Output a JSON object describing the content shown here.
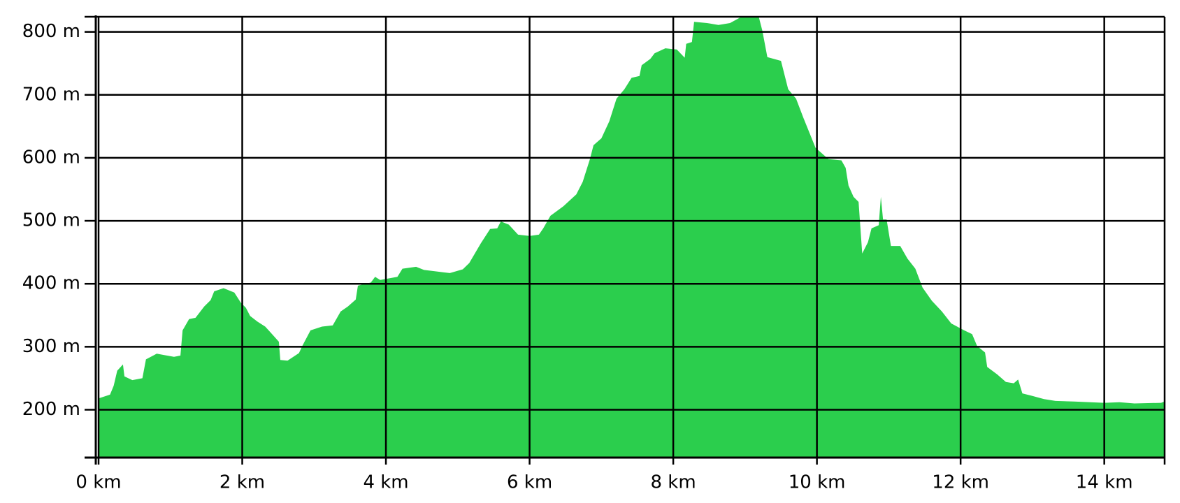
{
  "chart_data": {
    "type": "area",
    "x": [
      0,
      0.16,
      0.21,
      0.26,
      0.34,
      0.36,
      0.47,
      0.61,
      0.66,
      0.81,
      1.05,
      1.14,
      1.17,
      1.26,
      1.35,
      1.47,
      1.56,
      1.61,
      1.74,
      1.89,
      1.98,
      2.05,
      2.11,
      2.21,
      2.32,
      2.4,
      2.51,
      2.53,
      2.63,
      2.79,
      2.84,
      2.95,
      3.11,
      3.26,
      3.37,
      3.47,
      3.58,
      3.61,
      3.79,
      3.85,
      3.92,
      4.16,
      4.23,
      4.42,
      4.53,
      4.68,
      4.89,
      5.07,
      5.16,
      5.32,
      5.45,
      5.55,
      5.6,
      5.71,
      5.84,
      6.0,
      6.13,
      6.19,
      6.29,
      6.47,
      6.65,
      6.74,
      6.84,
      6.89,
      7.0,
      7.11,
      7.21,
      7.32,
      7.42,
      7.53,
      7.56,
      7.68,
      7.74,
      7.89,
      8.05,
      8.16,
      8.18,
      8.26,
      8.29,
      8.47,
      8.63,
      8.79,
      8.95,
      9.19,
      9.24,
      9.31,
      9.5,
      9.6,
      9.71,
      9.81,
      9.98,
      10.16,
      10.34,
      10.4,
      10.44,
      10.51,
      10.58,
      10.63,
      10.71,
      10.76,
      10.86,
      10.89,
      10.92,
      10.97,
      11.03,
      11.16,
      11.26,
      11.37,
      11.47,
      11.6,
      11.74,
      11.87,
      12.05,
      12.16,
      12.23,
      12.34,
      12.37,
      12.51,
      12.63,
      12.74,
      12.8,
      12.86,
      13.0,
      13.16,
      13.32,
      13.58,
      14.0,
      14.21,
      14.42,
      14.79,
      14.84
    ],
    "series": [
      {
        "color": "#2bce4d",
        "values": [
          218,
          224,
          238,
          262,
          272,
          253,
          247,
          250,
          280,
          289,
          284,
          286,
          326,
          344,
          346,
          364,
          374,
          388,
          393,
          386,
          370,
          362,
          349,
          340,
          332,
          322,
          308,
          279,
          278,
          290,
          302,
          326,
          332,
          334,
          356,
          364,
          375,
          397,
          402,
          411,
          406,
          411,
          424,
          427,
          422,
          420,
          417,
          423,
          433,
          464,
          487,
          488,
          499,
          494,
          478,
          476,
          478,
          488,
          508,
          523,
          542,
          562,
          598,
          620,
          631,
          658,
          694,
          709,
          727,
          730,
          747,
          757,
          766,
          774,
          772,
          759,
          781,
          784,
          816,
          814,
          811,
          814,
          824,
          824,
          802,
          760,
          754,
          709,
          694,
          664,
          616,
          598,
          596,
          584,
          556,
          538,
          530,
          448,
          466,
          488,
          493,
          538,
          502,
          502,
          460,
          460,
          440,
          424,
          394,
          373,
          356,
          337,
          326,
          320,
          301,
          291,
          268,
          256,
          244,
          242,
          248,
          226,
          222,
          217,
          214,
          213,
          211,
          212,
          210,
          211,
          213
        ]
      }
    ],
    "xlim": [
      0,
      14.84
    ],
    "ylim": [
      124,
      824
    ],
    "xticks": [
      {
        "value": 0,
        "label": "0 km"
      },
      {
        "value": 2,
        "label": "2 km"
      },
      {
        "value": 4,
        "label": "4 km"
      },
      {
        "value": 6,
        "label": "6 km"
      },
      {
        "value": 8,
        "label": "8 km"
      },
      {
        "value": 10,
        "label": "10 km"
      },
      {
        "value": 12,
        "label": "12 km"
      },
      {
        "value": 14,
        "label": "14 km"
      }
    ],
    "yticks": [
      {
        "value": 200,
        "label": "200 m"
      },
      {
        "value": 300,
        "label": "300 m"
      },
      {
        "value": 400,
        "label": "400 m"
      },
      {
        "value": 500,
        "label": "500 m"
      },
      {
        "value": 600,
        "label": "600 m"
      },
      {
        "value": 700,
        "label": "700 m"
      },
      {
        "value": 800,
        "label": "800 m"
      }
    ],
    "grid": true
  }
}
